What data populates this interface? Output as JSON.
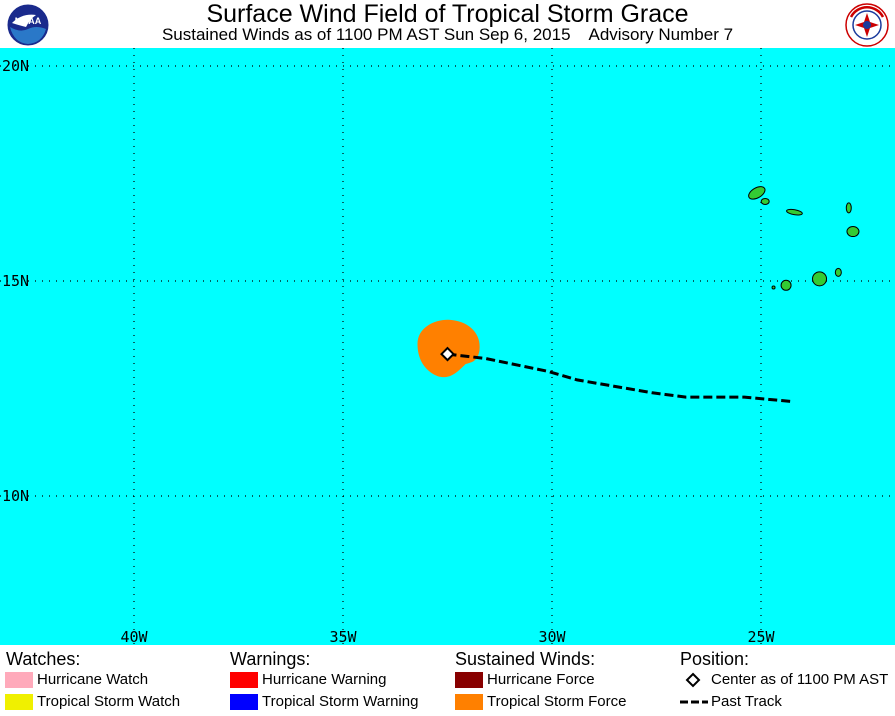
{
  "header": {
    "title": "Surface Wind Field of Tropical Storm Grace",
    "subtitle": "Sustained Winds as of 1100 PM AST Sun Sep 6, 2015    Advisory Number 7"
  },
  "logos": {
    "left": {
      "name": "noaa-logo",
      "text": "NOAA"
    },
    "right": {
      "name": "nws-logo",
      "text": "NATIONAL WEATHER SERVICE"
    }
  },
  "map": {
    "ocean_color": "#00ffff",
    "lat_labels": [
      "20N",
      "15N",
      "10N"
    ],
    "lon_labels": [
      "40W",
      "35W",
      "30W",
      "25W"
    ],
    "land_color": "#33cc33",
    "tropical_storm_force_color": "#ff8000",
    "storm_center": {
      "lat": 13.3,
      "lon": -32.5
    },
    "past_track": [
      {
        "lat": 13.3,
        "lon": -32.5
      },
      {
        "lat": 13.2,
        "lon": -31.6
      },
      {
        "lat": 12.9,
        "lon": -30.1
      },
      {
        "lat": 12.7,
        "lon": -29.4
      },
      {
        "lat": 12.4,
        "lon": -27.6
      },
      {
        "lat": 12.3,
        "lon": -26.8
      },
      {
        "lat": 12.3,
        "lon": -25.4
      },
      {
        "lat": 12.2,
        "lon": -24.3
      }
    ]
  },
  "legend": {
    "watches": {
      "heading": "Watches:",
      "items": [
        {
          "label": "Hurricane Watch",
          "color": "#ffaabb"
        },
        {
          "label": "Tropical Storm Watch",
          "color": "#f0f000"
        }
      ]
    },
    "warnings": {
      "heading": "Warnings:",
      "items": [
        {
          "label": "Hurricane Warning",
          "color": "#ff0000"
        },
        {
          "label": "Tropical Storm Warning",
          "color": "#0000ff"
        }
      ]
    },
    "winds": {
      "heading": "Sustained Winds:",
      "items": [
        {
          "label": "Hurricane Force",
          "color": "#880000"
        },
        {
          "label": "Tropical Storm Force",
          "color": "#ff8000"
        }
      ]
    },
    "position": {
      "heading": "Position:",
      "items": [
        {
          "label": "Center as of 1100 PM AST"
        },
        {
          "label": "Past Track"
        }
      ]
    }
  }
}
